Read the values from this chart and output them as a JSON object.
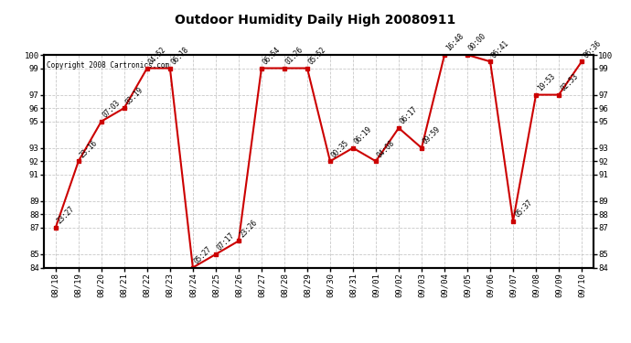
{
  "title": "Outdoor Humidity Daily High 20080911",
  "copyright": "Copyright 2008 Cartronics.com",
  "background_color": "#ffffff",
  "line_color": "#cc0000",
  "marker_color": "#cc0000",
  "grid_color": "#bbbbbb",
  "ylim": [
    84,
    100
  ],
  "yticks": [
    84,
    85,
    87,
    88,
    89,
    91,
    92,
    93,
    95,
    96,
    97,
    99,
    100
  ],
  "data_points": [
    {
      "date": "08/18",
      "value": 87,
      "label": "23:27"
    },
    {
      "date": "08/19",
      "value": 92,
      "label": "23:16"
    },
    {
      "date": "08/20",
      "value": 95,
      "label": "07:03"
    },
    {
      "date": "08/21",
      "value": 96,
      "label": "03:19"
    },
    {
      "date": "08/22",
      "value": 99,
      "label": "04:52"
    },
    {
      "date": "08/23",
      "value": 99,
      "label": "06:18"
    },
    {
      "date": "08/24",
      "value": 84,
      "label": "05:27"
    },
    {
      "date": "08/25",
      "value": 85,
      "label": "07:17"
    },
    {
      "date": "08/26",
      "value": 86,
      "label": "23:26"
    },
    {
      "date": "08/27",
      "value": 99,
      "label": "06:54"
    },
    {
      "date": "08/28",
      "value": 99,
      "label": "01:26"
    },
    {
      "date": "08/29",
      "value": 99,
      "label": "05:52"
    },
    {
      "date": "08/30",
      "value": 92,
      "label": "00:35"
    },
    {
      "date": "08/31",
      "value": 93,
      "label": "06:19"
    },
    {
      "date": "09/01",
      "value": 92,
      "label": "04:08"
    },
    {
      "date": "09/02",
      "value": 94.5,
      "label": "06:17"
    },
    {
      "date": "09/03",
      "value": 93,
      "label": "09:59"
    },
    {
      "date": "09/04",
      "value": 100,
      "label": "16:48"
    },
    {
      "date": "09/05",
      "value": 100,
      "label": "00:00"
    },
    {
      "date": "09/06",
      "value": 99.5,
      "label": "06:41"
    },
    {
      "date": "09/07",
      "value": 87.5,
      "label": "05:37"
    },
    {
      "date": "09/08",
      "value": 97,
      "label": "19:53"
    },
    {
      "date": "09/09",
      "value": 97,
      "label": "02:53"
    },
    {
      "date": "09/10",
      "value": 99.5,
      "label": "06:36"
    }
  ]
}
